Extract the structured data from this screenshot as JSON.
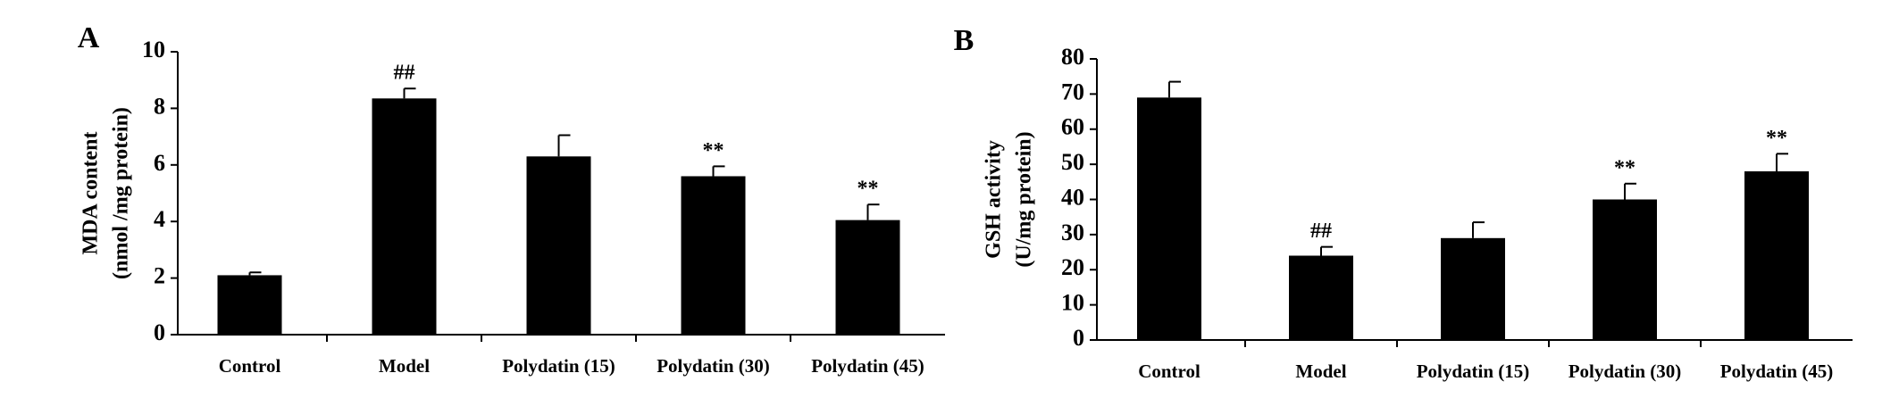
{
  "chart_data": [
    {
      "type": "bar",
      "title": "A",
      "ylabel": [
        "MDA content",
        "(nmol /mg protein)"
      ],
      "categories": [
        "Control",
        "Model",
        "Polydatin (15)",
        "Polydatin (30)",
        "Polydatin (45)"
      ],
      "values": [
        2.1,
        8.35,
        6.3,
        5.6,
        4.05
      ],
      "errors": [
        0.1,
        0.35,
        0.75,
        0.35,
        0.55
      ],
      "annotations": [
        null,
        "##",
        null,
        "**",
        "**"
      ],
      "color": "#000000",
      "ylim": [
        0,
        10
      ],
      "yticks": [
        0,
        2,
        4,
        6,
        8,
        10
      ]
    },
    {
      "type": "bar",
      "title": "B",
      "ylabel": [
        "GSH activity",
        "(U/mg protein)"
      ],
      "categories": [
        "Control",
        "Model",
        "Polydatin (15)",
        "Polydatin (30)",
        "Polydatin (45)"
      ],
      "values": [
        69,
        24,
        29,
        40,
        48
      ],
      "errors": [
        4.5,
        2.5,
        4.5,
        4.5,
        5
      ],
      "annotations": [
        null,
        "##",
        null,
        "**",
        "**"
      ],
      "color": "#000000",
      "ylim": [
        0,
        80
      ],
      "yticks": [
        0,
        10,
        20,
        30,
        40,
        50,
        60,
        70,
        80
      ]
    }
  ]
}
